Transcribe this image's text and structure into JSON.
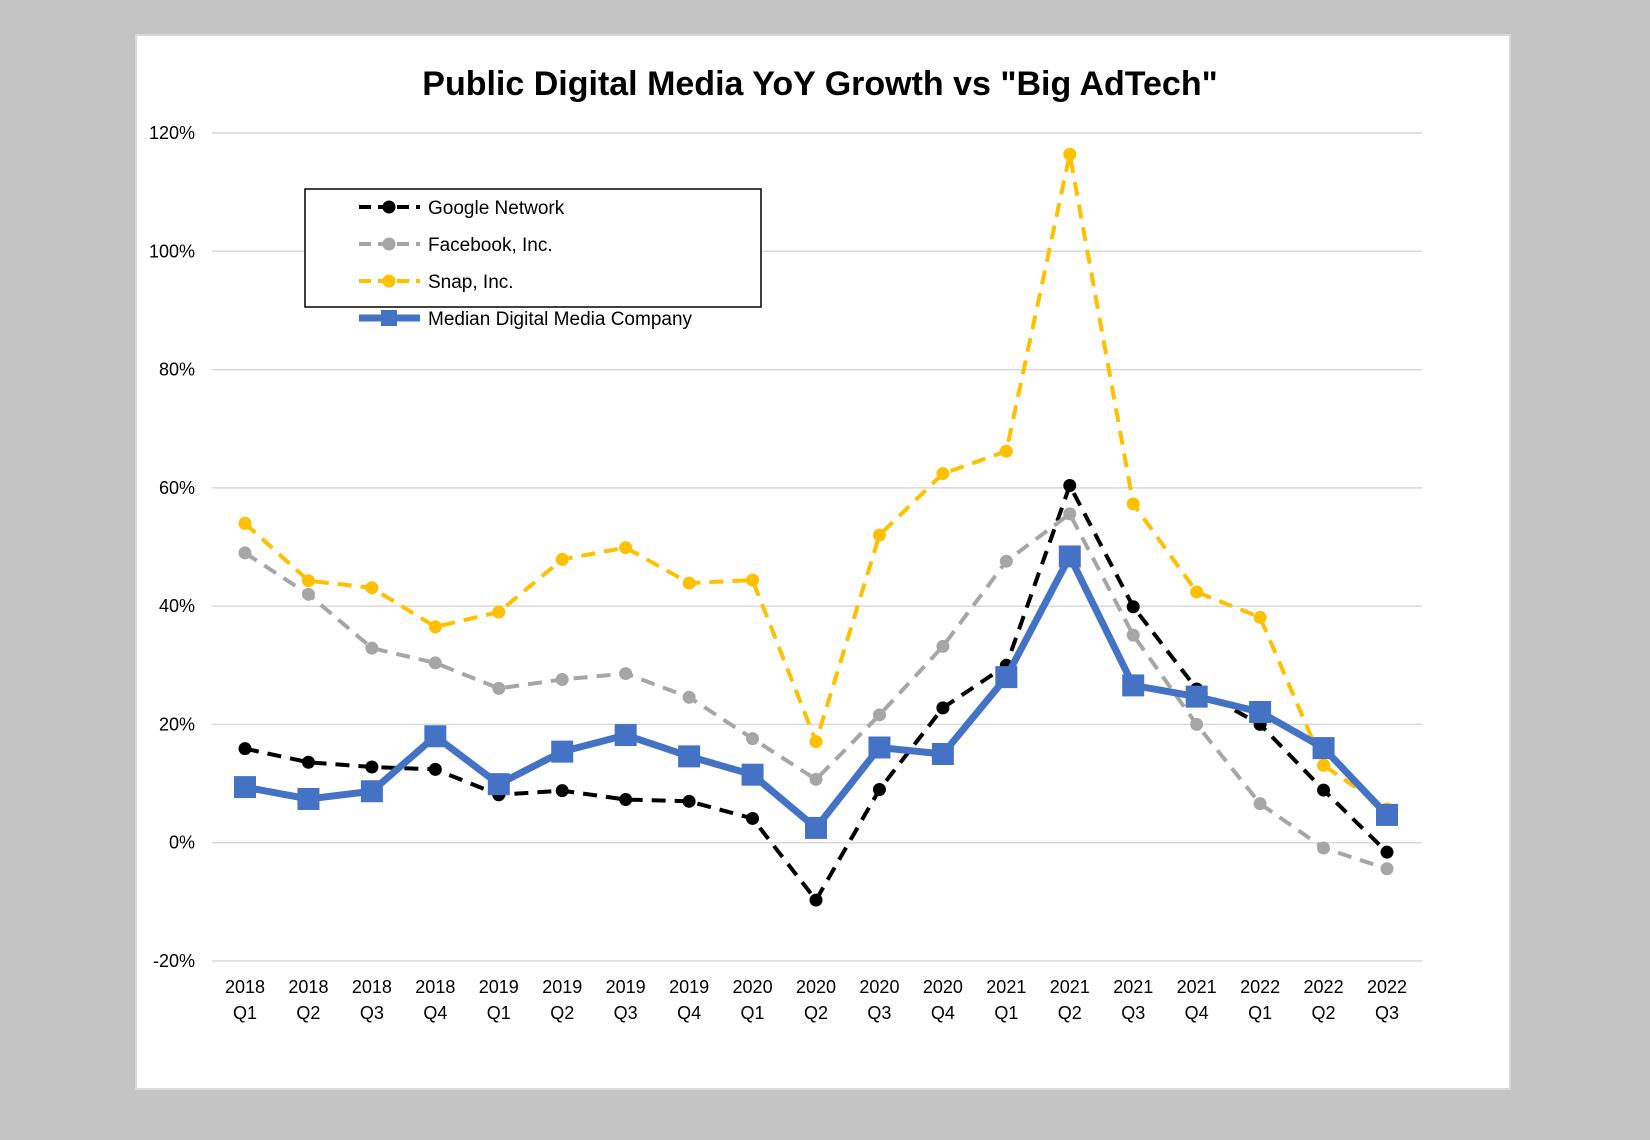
{
  "chart_data": {
    "type": "line",
    "title": "Public Digital Media YoY Growth vs \"Big AdTech\"",
    "xlabel": "",
    "ylabel": "",
    "ylim": [
      -20,
      120
    ],
    "yticks": [
      -20,
      0,
      20,
      40,
      60,
      80,
      100,
      120
    ],
    "ytick_labels": [
      "-20%",
      "0%",
      "20%",
      "40%",
      "60%",
      "80%",
      "100%",
      "120%"
    ],
    "grid": true,
    "legend_position": "top-left",
    "categories": [
      [
        "2018",
        "Q1"
      ],
      [
        "2018",
        "Q2"
      ],
      [
        "2018",
        "Q3"
      ],
      [
        "2018",
        "Q4"
      ],
      [
        "2019",
        "Q1"
      ],
      [
        "2019",
        "Q2"
      ],
      [
        "2019",
        "Q3"
      ],
      [
        "2019",
        "Q4"
      ],
      [
        "2020",
        "Q1"
      ],
      [
        "2020",
        "Q2"
      ],
      [
        "2020",
        "Q3"
      ],
      [
        "2020",
        "Q4"
      ],
      [
        "2021",
        "Q1"
      ],
      [
        "2021",
        "Q2"
      ],
      [
        "2021",
        "Q3"
      ],
      [
        "2021",
        "Q4"
      ],
      [
        "2022",
        "Q1"
      ],
      [
        "2022",
        "Q2"
      ],
      [
        "2022",
        "Q3"
      ]
    ],
    "series": [
      {
        "name": "Google Network",
        "color": "#000000",
        "style": "dashed-circle",
        "values": [
          15.9,
          13.6,
          12.8,
          12.4,
          8.1,
          8.8,
          7.3,
          7.0,
          4.1,
          -9.7,
          9.0,
          22.8,
          30.0,
          60.4,
          39.9,
          26.0,
          20.0,
          8.9,
          -1.6
        ]
      },
      {
        "name": "Facebook, Inc.",
        "color": "#a6a6a6",
        "style": "dashed-circle",
        "values": [
          49.0,
          42.0,
          32.9,
          30.4,
          26.1,
          27.6,
          28.6,
          24.6,
          17.6,
          10.7,
          21.6,
          33.2,
          47.6,
          55.6,
          35.1,
          20.0,
          6.6,
          -0.9,
          -4.4
        ]
      },
      {
        "name": "Snap, Inc.",
        "color": "#ffc000",
        "style": "dashed-circle",
        "values": [
          54.0,
          44.3,
          43.1,
          36.5,
          39.0,
          47.9,
          49.9,
          43.9,
          44.4,
          17.1,
          52.0,
          62.4,
          66.2,
          116.4,
          57.3,
          42.4,
          38.1,
          13.1,
          5.7
        ]
      },
      {
        "name": "Median Digital Media Company",
        "color": "#4472c4",
        "style": "solid-square",
        "values": [
          9.4,
          7.4,
          8.7,
          18.0,
          9.9,
          15.4,
          18.2,
          14.6,
          11.5,
          2.5,
          16.1,
          15.0,
          28.0,
          48.4,
          26.6,
          24.7,
          22.1,
          16.0,
          4.7
        ]
      }
    ]
  }
}
